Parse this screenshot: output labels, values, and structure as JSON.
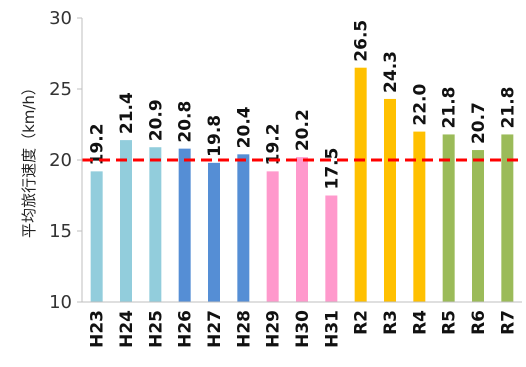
{
  "chart_data": {
    "type": "bar",
    "ylabel": "平均旅行速度（km/h）",
    "ylim": [
      10,
      30
    ],
    "yticks": [
      "10",
      "15",
      "20",
      "25",
      "30"
    ],
    "categories": [
      "H23",
      "H24",
      "H25",
      "H26",
      "H27",
      "H28",
      "H29",
      "H30",
      "H31",
      "R2",
      "R3",
      "R4",
      "R5",
      "R6",
      "R7"
    ],
    "values": [
      19.2,
      21.4,
      20.9,
      20.8,
      19.8,
      20.4,
      19.2,
      20.2,
      17.5,
      26.5,
      24.3,
      22.0,
      21.8,
      20.7,
      21.8
    ],
    "value_labels": [
      "19.2",
      "21.4",
      "20.9",
      "20.8",
      "19.8",
      "20.4",
      "19.2",
      "20.2",
      "17.5",
      "26.5",
      "24.3",
      "22.0",
      "21.8",
      "20.7",
      "21.8"
    ],
    "colors": [
      "#92cddc",
      "#92cddc",
      "#92cddc",
      "#558ed5",
      "#558ed5",
      "#558ed5",
      "#ff99cc",
      "#ff99cc",
      "#ff99cc",
      "#ffc000",
      "#ffc000",
      "#ffc000",
      "#9bbb59",
      "#9bbb59",
      "#9bbb59"
    ],
    "reference_line": {
      "value": 20,
      "color": "#ff0000",
      "style": "dashed"
    },
    "grid": false,
    "legend": "none"
  }
}
